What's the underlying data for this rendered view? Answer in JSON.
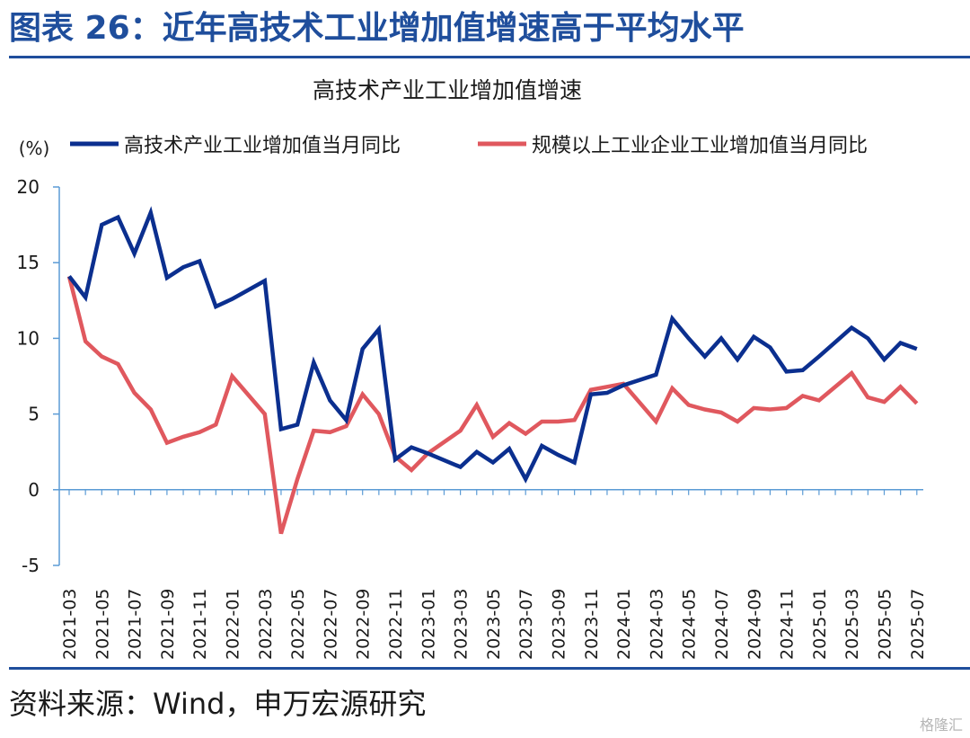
{
  "figure": {
    "title": "图表 26：近年高技术工业增加值增速高于平均水平",
    "source": "资料来源：Wind，申万宏源研究",
    "watermark": "格隆汇"
  },
  "colors": {
    "brand": "#1f4e9c",
    "series_hightech": "#0b2f8f",
    "series_industry": "#e0585e",
    "axis": "#5b9bd5"
  },
  "chart_data": {
    "type": "line",
    "title": "高技术产业工业增加值增速",
    "ylabel": "(%)",
    "xlabel": "",
    "ylim": [
      -5,
      20
    ],
    "yticks": [
      -5,
      0,
      5,
      10,
      15,
      20
    ],
    "legend_position": "top",
    "grid": false,
    "x": [
      "2021-03",
      "2021-04",
      "2021-05",
      "2021-06",
      "2021-07",
      "2021-08",
      "2021-09",
      "2021-10",
      "2021-11",
      "2021-12",
      "2022-01",
      "2022-02",
      "2022-03",
      "2022-04",
      "2022-05",
      "2022-06",
      "2022-07",
      "2022-08",
      "2022-09",
      "2022-10",
      "2022-11",
      "2022-12",
      "2023-01",
      "2023-02",
      "2023-03",
      "2023-04",
      "2023-05",
      "2023-06",
      "2023-07",
      "2023-08",
      "2023-09",
      "2023-10",
      "2023-11",
      "2023-12",
      "2024-01",
      "2024-02",
      "2024-03",
      "2024-04",
      "2024-05",
      "2024-06",
      "2024-07",
      "2024-08",
      "2024-09",
      "2024-10",
      "2024-11",
      "2024-12",
      "2025-01",
      "2025-02",
      "2025-03",
      "2025-04",
      "2025-05",
      "2025-06",
      "2025-07"
    ],
    "xtick_labels": [
      "2021-03",
      "2021-05",
      "2021-07",
      "2021-09",
      "2021-11",
      "2022-01",
      "2022-03",
      "2022-05",
      "2022-07",
      "2022-09",
      "2022-11",
      "2023-01",
      "2023-03",
      "2023-05",
      "2023-07",
      "2023-09",
      "2023-11",
      "2024-01",
      "2024-03",
      "2024-05",
      "2024-07",
      "2024-09",
      "2024-11",
      "2025-01",
      "2025-03",
      "2025-05",
      "2025-07"
    ],
    "series": [
      {
        "name": "高技术产业工业增加值当月同比",
        "color": "#0b2f8f",
        "points": [
          [
            "2021-03",
            14.1
          ],
          [
            "2021-04",
            12.7
          ],
          [
            "2021-05",
            17.5
          ],
          [
            "2021-06",
            18.0
          ],
          [
            "2021-07",
            15.6
          ],
          [
            "2021-08",
            18.3
          ],
          [
            "2021-09",
            14.0
          ],
          [
            "2021-10",
            14.7
          ],
          [
            "2021-11",
            15.1
          ],
          [
            "2021-12",
            12.1
          ],
          [
            "2022-03",
            13.8
          ],
          [
            "2022-04",
            4.0
          ],
          [
            "2022-05",
            4.3
          ],
          [
            "2022-06",
            8.4
          ],
          [
            "2022-07",
            5.9
          ],
          [
            "2022-08",
            4.6
          ],
          [
            "2022-09",
            9.3
          ],
          [
            "2022-10",
            10.6
          ],
          [
            "2022-11",
            2.0
          ],
          [
            "2022-12",
            2.8
          ],
          [
            "2023-03",
            1.5
          ],
          [
            "2023-04",
            2.5
          ],
          [
            "2023-05",
            1.8
          ],
          [
            "2023-06",
            2.7
          ],
          [
            "2023-07",
            0.7
          ],
          [
            "2023-08",
            2.9
          ],
          [
            "2023-09",
            2.3
          ],
          [
            "2023-10",
            1.8
          ],
          [
            "2023-11",
            6.3
          ],
          [
            "2023-12",
            6.4
          ],
          [
            "2024-03",
            7.6
          ],
          [
            "2024-04",
            11.3
          ],
          [
            "2024-05",
            10.0
          ],
          [
            "2024-06",
            8.8
          ],
          [
            "2024-07",
            10.0
          ],
          [
            "2024-08",
            8.6
          ],
          [
            "2024-09",
            10.1
          ],
          [
            "2024-10",
            9.4
          ],
          [
            "2024-11",
            7.8
          ],
          [
            "2024-12",
            7.9
          ],
          [
            "2025-03",
            10.7
          ],
          [
            "2025-04",
            10.0
          ],
          [
            "2025-05",
            8.6
          ],
          [
            "2025-06",
            9.7
          ],
          [
            "2025-07",
            9.3
          ]
        ]
      },
      {
        "name": "规模以上工业企业工业增加值当月同比",
        "color": "#e0585e",
        "points": [
          [
            "2021-03",
            14.1
          ],
          [
            "2021-04",
            9.8
          ],
          [
            "2021-05",
            8.8
          ],
          [
            "2021-06",
            8.3
          ],
          [
            "2021-07",
            6.4
          ],
          [
            "2021-08",
            5.3
          ],
          [
            "2021-09",
            3.1
          ],
          [
            "2021-10",
            3.5
          ],
          [
            "2021-11",
            3.8
          ],
          [
            "2021-12",
            4.3
          ],
          [
            "2022-03",
            5.0
          ],
          [
            "2022-04",
            -2.9
          ],
          [
            "2022-05",
            0.7
          ],
          [
            "2022-06",
            3.9
          ],
          [
            "2022-07",
            3.8
          ],
          [
            "2022-08",
            4.2
          ],
          [
            "2022-09",
            6.3
          ],
          [
            "2022-10",
            5.0
          ],
          [
            "2022-11",
            2.2
          ],
          [
            "2022-12",
            1.3
          ],
          [
            "2023-03",
            3.9
          ],
          [
            "2023-04",
            5.6
          ],
          [
            "2023-05",
            3.5
          ],
          [
            "2023-06",
            4.4
          ],
          [
            "2023-07",
            3.7
          ],
          [
            "2023-08",
            4.5
          ],
          [
            "2023-09",
            4.5
          ],
          [
            "2023-10",
            4.6
          ],
          [
            "2023-11",
            6.6
          ],
          [
            "2023-12",
            6.8
          ],
          [
            "2024-03",
            4.5
          ],
          [
            "2024-04",
            6.7
          ],
          [
            "2024-05",
            5.6
          ],
          [
            "2024-06",
            5.3
          ],
          [
            "2024-07",
            5.1
          ],
          [
            "2024-08",
            4.5
          ],
          [
            "2024-09",
            5.4
          ],
          [
            "2024-10",
            5.3
          ],
          [
            "2024-11",
            5.4
          ],
          [
            "2024-12",
            6.2
          ],
          [
            "2025-03",
            7.7
          ],
          [
            "2025-04",
            6.1
          ],
          [
            "2025-05",
            5.8
          ],
          [
            "2025-06",
            6.8
          ],
          [
            "2025-07",
            5.7
          ]
        ]
      }
    ],
    "combined_jan_feb_points": {
      "hightech": [
        [
          "2022-01",
          12.6
        ],
        [
          "2023-01",
          2.4
        ],
        [
          "2024-01",
          6.9
        ],
        [
          "2025-01",
          8.8
        ]
      ],
      "industry": [
        [
          "2022-01",
          7.5
        ],
        [
          "2023-01",
          2.4
        ],
        [
          "2024-01",
          7.0
        ],
        [
          "2025-01",
          5.9
        ]
      ]
    }
  }
}
